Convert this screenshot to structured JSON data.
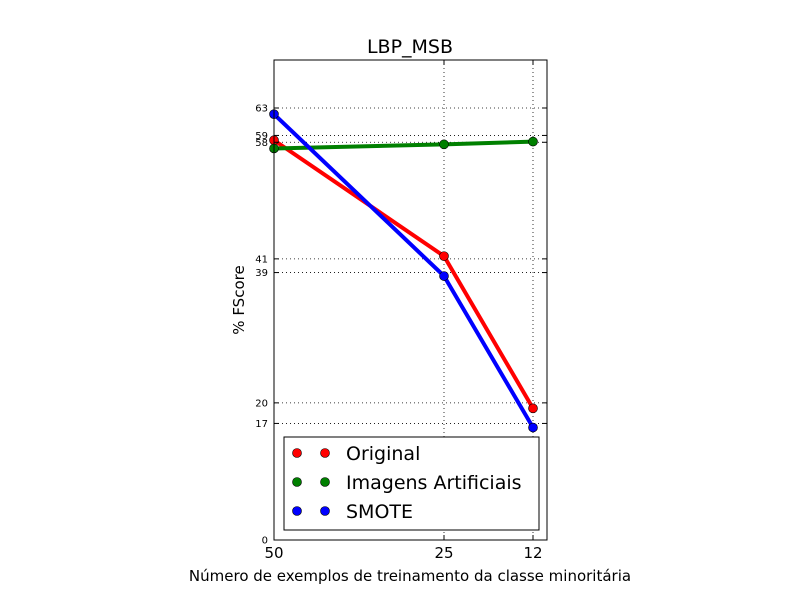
{
  "chart_data": {
    "type": "line",
    "title": "LBP_MSB",
    "xlabel": "Número de exemplos de treinamento da classe minoritária",
    "ylabel": "% FScore",
    "x_ticks": [
      50,
      25,
      12
    ],
    "y_ticks": [
      0,
      17,
      20,
      39,
      41,
      58,
      59,
      63
    ],
    "ylim": [
      0,
      63
    ],
    "grid": true,
    "legend_position": "lower-right",
    "series": [
      {
        "name": "Original",
        "color": "#ff0000",
        "x": [
          50,
          25,
          12
        ],
        "y": [
          58.3,
          41.4,
          19.2
        ]
      },
      {
        "name": "Imagens Artificiais",
        "color": "#008000",
        "x": [
          50,
          25,
          12
        ],
        "y": [
          57.1,
          57.7,
          58.1
        ]
      },
      {
        "name": "SMOTE",
        "color": "#0000ff",
        "x": [
          50,
          25,
          12
        ],
        "y": [
          62.1,
          38.5,
          16.4
        ]
      }
    ]
  }
}
